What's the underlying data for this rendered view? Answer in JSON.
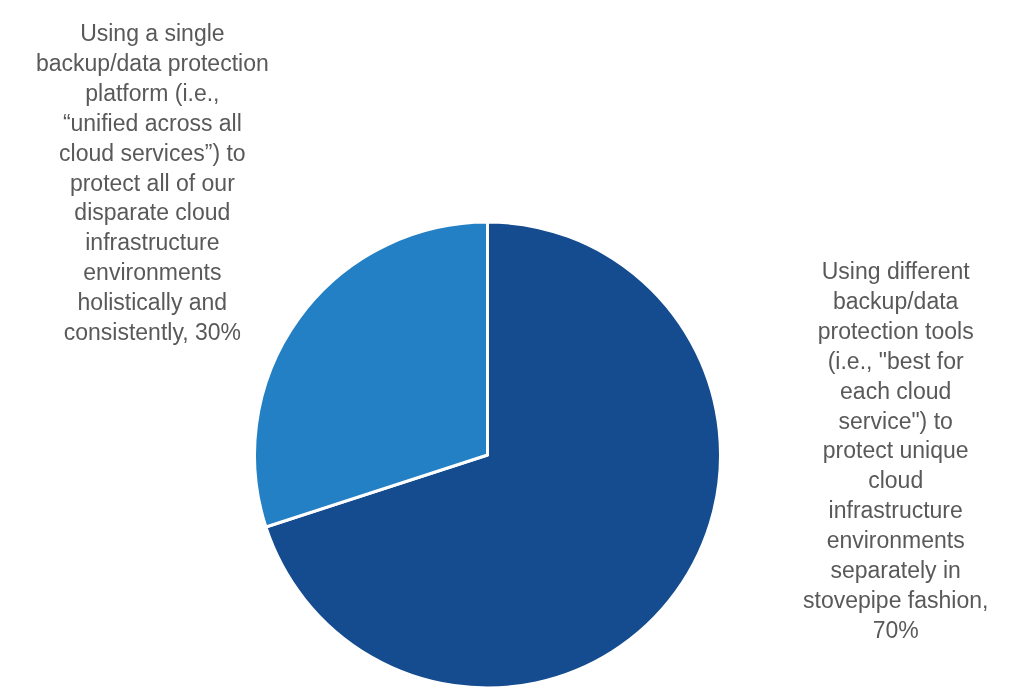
{
  "chart_data": {
    "type": "pie",
    "categories": [
      "Using different backup/data protection tools (i.e., \"best for each cloud service\") to protect unique cloud infrastructure environments separately in stovepipe fashion",
      "Using a single backup/data protection platform (i.e., “unified across all cloud services”) to protect all of our disparate cloud infrastructure environments holistically and consistently"
    ],
    "values": [
      70,
      30
    ],
    "value_labels": [
      ", 70%",
      ", 30%"
    ],
    "colors": [
      "#144c8f",
      "#2480c4"
    ],
    "legend": false
  }
}
